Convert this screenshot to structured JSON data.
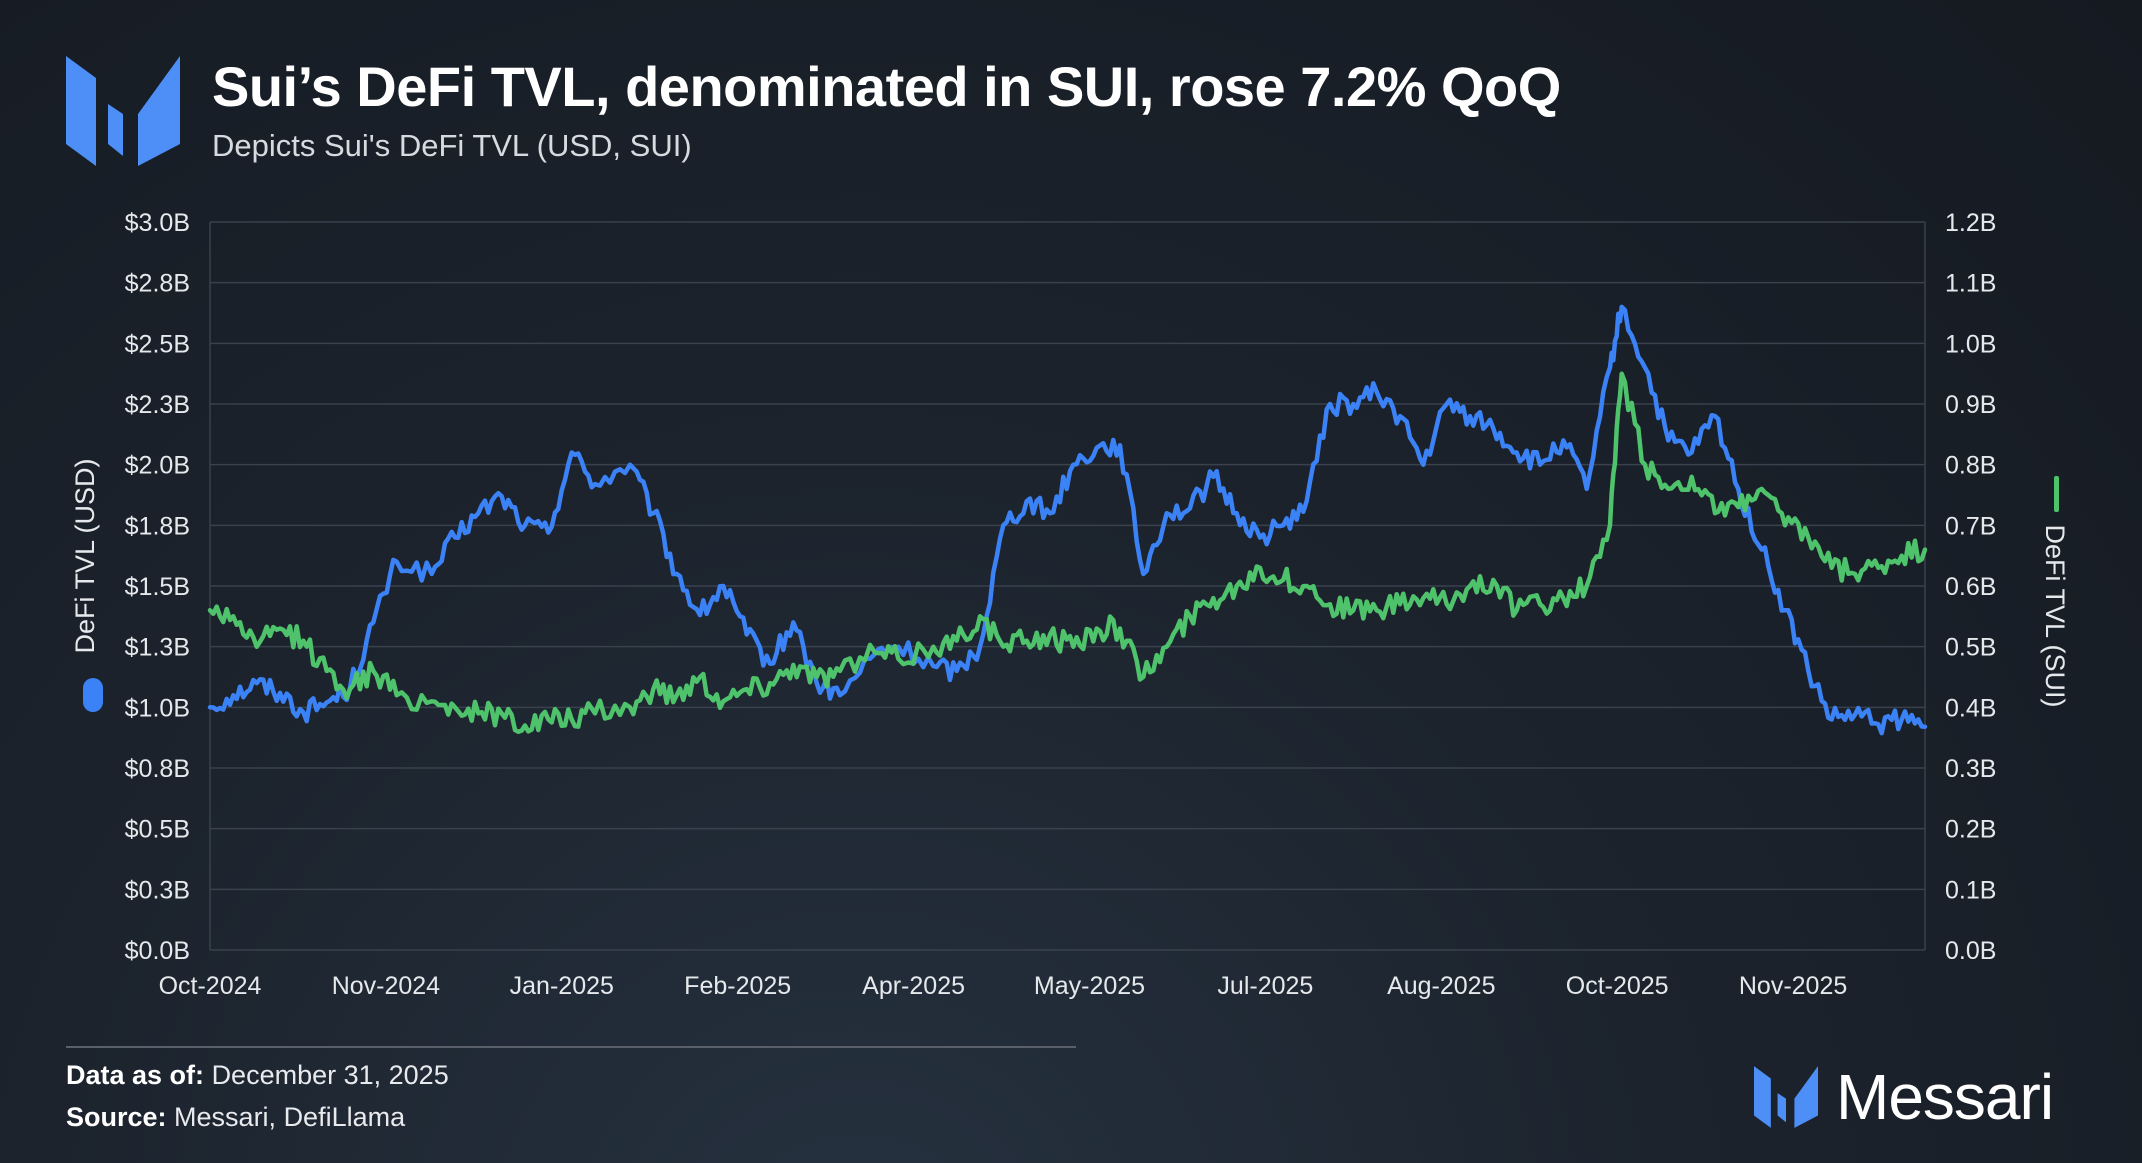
{
  "header": {
    "title": "Sui’s DeFi TVL, denominated in SUI, rose 7.2% QoQ",
    "subtitle": "Depicts Sui's DeFi TVL (USD, SUI)"
  },
  "footer": {
    "data_as_of_label": "Data as of:",
    "data_as_of_value": "December 31, 2025",
    "source_label": "Source:",
    "source_value": "Messari, DefiLlama",
    "brand": "Messari"
  },
  "colors": {
    "usd_series": "#3b82f6",
    "sui_series": "#4ec36b",
    "grid": "#39414c",
    "axis_text": "#e6e9ec",
    "brand_blue": "#4d8ff7"
  },
  "chart_data": {
    "type": "line",
    "title": "Sui’s DeFi TVL, denominated in SUI, rose 7.2% QoQ",
    "x_tick_labels": [
      "Oct-2024",
      "Nov-2024",
      "Jan-2025",
      "Feb-2025",
      "Apr-2025",
      "May-2025",
      "Jul-2025",
      "Aug-2025",
      "Oct-2025",
      "Nov-2025"
    ],
    "y_left": {
      "label": "DeFi TVL (USD)",
      "range": [
        0,
        3.0
      ],
      "tick_labels": [
        "$0.0B",
        "$0.3B",
        "$0.5B",
        "$0.8B",
        "$1.0B",
        "$1.3B",
        "$1.5B",
        "$1.8B",
        "$2.0B",
        "$2.3B",
        "$2.5B",
        "$2.8B",
        "$3.0B"
      ]
    },
    "y_right": {
      "label": "DeFi TVL (SUI)",
      "range": [
        0,
        1.2
      ],
      "tick_labels": [
        "0.0B",
        "0.1B",
        "0.2B",
        "0.3B",
        "0.4B",
        "0.5B",
        "0.6B",
        "0.7B",
        "0.8B",
        "0.9B",
        "1.0B",
        "1.1B",
        "1.2B"
      ]
    },
    "grid": true,
    "x_domain_months": [
      0,
      14.7
    ],
    "series": [
      {
        "name": "DeFi TVL (USD)",
        "axis": "left",
        "color": "#3b82f6",
        "x_months": [
          0,
          0.2,
          0.4,
          0.6,
          0.8,
          1.0,
          1.2,
          1.4,
          1.6,
          1.9,
          2.1,
          2.3,
          2.5,
          2.7,
          2.9,
          3.1,
          3.3,
          3.6,
          3.8,
          4.0,
          4.2,
          4.4,
          4.6,
          4.8,
          5.0,
          5.2,
          5.4,
          5.7,
          5.9,
          6.2,
          6.4,
          6.6,
          6.8,
          7.0,
          7.2,
          7.4,
          7.6,
          7.8,
          8.0,
          8.2,
          8.4,
          8.6,
          8.8,
          9.0,
          9.2,
          9.4,
          9.6,
          9.8,
          10.0,
          10.2,
          10.4,
          10.6,
          10.8,
          11.0,
          11.2,
          11.4,
          11.6,
          11.8,
          12.0,
          12.1,
          12.3,
          12.5,
          12.7,
          12.9,
          13.1,
          13.3,
          13.5,
          13.7,
          13.9,
          14.1,
          14.3,
          14.5,
          14.7
        ],
        "values": [
          1.0,
          1.05,
          1.1,
          1.06,
          0.98,
          1.02,
          1.08,
          1.35,
          1.6,
          1.55,
          1.7,
          1.8,
          1.87,
          1.75,
          1.72,
          2.05,
          1.92,
          2.0,
          1.8,
          1.55,
          1.38,
          1.5,
          1.3,
          1.18,
          1.35,
          1.1,
          1.05,
          1.22,
          1.25,
          1.17,
          1.15,
          1.25,
          1.75,
          1.85,
          1.8,
          2.0,
          2.07,
          2.08,
          1.55,
          1.8,
          1.82,
          1.95,
          1.8,
          1.7,
          1.75,
          1.85,
          2.25,
          2.25,
          2.3,
          2.2,
          2.0,
          2.25,
          2.2,
          2.15,
          2.05,
          2.0,
          2.1,
          1.9,
          2.4,
          2.65,
          2.4,
          2.1,
          2.05,
          2.2,
          1.9,
          1.65,
          1.4,
          1.15,
          0.95,
          0.97,
          0.93,
          0.95,
          0.92
        ]
      },
      {
        "name": "DeFi TVL (SUI)",
        "axis": "right",
        "color": "#4ec36b",
        "x_months": [
          0,
          0.2,
          0.4,
          0.6,
          0.8,
          1.0,
          1.2,
          1.4,
          1.6,
          1.9,
          2.1,
          2.3,
          2.5,
          2.7,
          2.9,
          3.1,
          3.3,
          3.6,
          3.8,
          4.0,
          4.2,
          4.4,
          4.6,
          4.8,
          5.0,
          5.2,
          5.4,
          5.7,
          5.9,
          6.2,
          6.4,
          6.6,
          6.8,
          7.0,
          7.2,
          7.4,
          7.6,
          7.8,
          8.0,
          8.2,
          8.4,
          8.6,
          8.8,
          9.0,
          9.2,
          9.4,
          9.6,
          9.8,
          10.0,
          10.2,
          10.4,
          10.6,
          10.8,
          11.0,
          11.2,
          11.4,
          11.6,
          11.8,
          12.0,
          12.1,
          12.3,
          12.5,
          12.7,
          12.9,
          13.1,
          13.3,
          13.5,
          13.7,
          13.9,
          14.1,
          14.3,
          14.5,
          14.7
        ],
        "values": [
          0.56,
          0.55,
          0.5,
          0.53,
          0.51,
          0.46,
          0.43,
          0.46,
          0.42,
          0.41,
          0.4,
          0.39,
          0.39,
          0.37,
          0.38,
          0.38,
          0.39,
          0.4,
          0.43,
          0.42,
          0.45,
          0.41,
          0.43,
          0.44,
          0.47,
          0.45,
          0.46,
          0.49,
          0.48,
          0.5,
          0.51,
          0.55,
          0.5,
          0.51,
          0.52,
          0.5,
          0.53,
          0.53,
          0.45,
          0.5,
          0.55,
          0.58,
          0.6,
          0.63,
          0.61,
          0.6,
          0.57,
          0.56,
          0.56,
          0.57,
          0.58,
          0.57,
          0.6,
          0.61,
          0.56,
          0.57,
          0.58,
          0.6,
          0.7,
          0.95,
          0.8,
          0.76,
          0.78,
          0.72,
          0.73,
          0.76,
          0.7,
          0.68,
          0.63,
          0.62,
          0.63,
          0.65,
          0.66
        ]
      }
    ]
  }
}
